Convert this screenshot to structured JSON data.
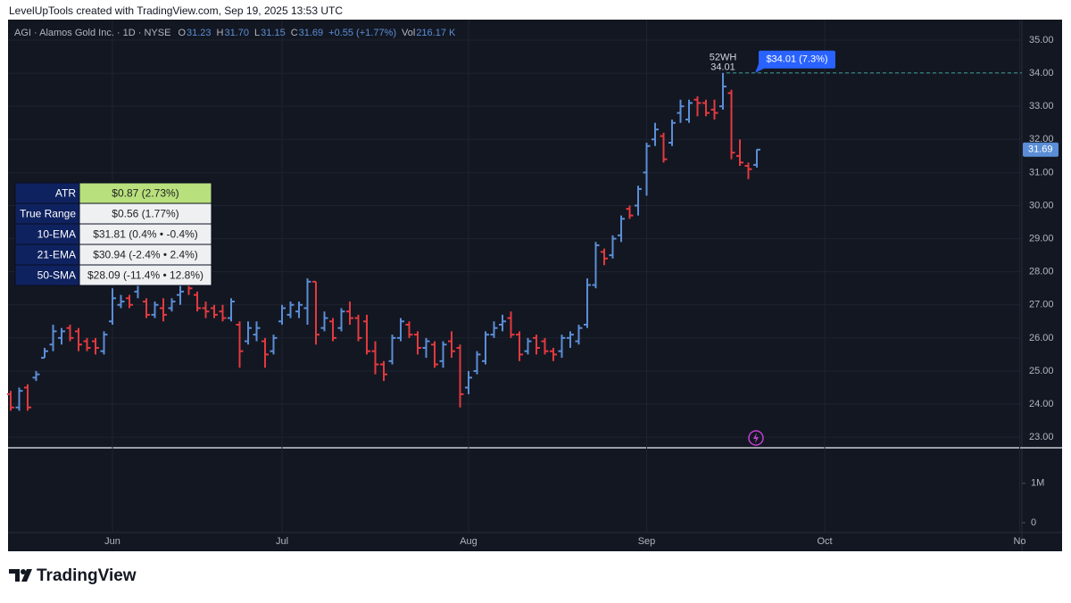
{
  "header": {
    "credit": "LevelUpTools created with TradingView.com, Sep 19, 2025 13:53 UTC"
  },
  "legend": {
    "symbol": "AGI · Alamos Gold Inc. · 1D · NYSE",
    "items": [
      {
        "key": "O",
        "value": "31.23"
      },
      {
        "key": "H",
        "value": "31.70"
      },
      {
        "key": "L",
        "value": "31.15"
      },
      {
        "key": "C",
        "value": "31.69"
      }
    ],
    "change": "+0.55 (+1.77%)",
    "volume": {
      "key": "Vol",
      "value": "216.17 K"
    }
  },
  "indicator_table": {
    "rows": [
      [
        "ATR",
        "$0.87 (2.73%)"
      ],
      [
        "True Range",
        "$0.56 (1.77%)"
      ],
      [
        "10-EMA",
        "$31.81 (0.4% • -0.4%)"
      ],
      [
        "21-EMA",
        "$30.94 (-2.4% • 2.4%)"
      ],
      [
        "50-SMA",
        "$28.09 (-11.4% • 12.8%)"
      ]
    ]
  },
  "chart_data": {
    "type": "ohlc",
    "categories": [
      null,
      null,
      null,
      null,
      null,
      null,
      null,
      null,
      null,
      null,
      null,
      null,
      "Jun",
      null,
      null,
      null,
      null,
      null,
      null,
      null,
      null,
      null,
      null,
      null,
      null,
      null,
      null,
      null,
      null,
      null,
      null,
      null,
      "Jul",
      null,
      null,
      null,
      null,
      null,
      null,
      null,
      null,
      null,
      null,
      null,
      null,
      null,
      null,
      null,
      null,
      null,
      null,
      null,
      null,
      null,
      "Aug",
      null,
      null,
      null,
      null,
      null,
      null,
      null,
      null,
      null,
      null,
      null,
      null,
      null,
      null,
      null,
      null,
      null,
      null,
      null,
      null,
      "Sep",
      null,
      null,
      null,
      null,
      null,
      null,
      null,
      null,
      null,
      null,
      null,
      null,
      null,
      null,
      null,
      null,
      null,
      null,
      null,
      null,
      "Oct",
      null,
      null,
      null,
      null,
      null,
      null,
      null,
      null,
      null,
      null,
      null,
      null,
      null,
      null,
      null,
      null,
      null,
      null,
      null,
      null,
      null,
      null,
      "No"
    ],
    "open": [
      24.3,
      23.9,
      24.5,
      24.8,
      25.4,
      25.8,
      26.0,
      26.3,
      26.2,
      25.9,
      25.9,
      25.6,
      26.5,
      27.0,
      27.2,
      27.4,
      27.1,
      26.7,
      26.9,
      26.9,
      27.3,
      27.6,
      27.3,
      26.9,
      26.9,
      26.8,
      26.6,
      26.4,
      25.9,
      26.1,
      25.9,
      25.6,
      26.5,
      26.7,
      26.8,
      26.9,
      27.7,
      26.3,
      26.5,
      26.3,
      26.8,
      26.6,
      26.5,
      25.6,
      25.2,
      25.3,
      26.0,
      26.4,
      26.1,
      25.7,
      25.8,
      25.3,
      25.9,
      25.7,
      24.5,
      25.0,
      25.3,
      26.1,
      26.4,
      26.6,
      26.1,
      25.6,
      26.0,
      25.9,
      25.6,
      25.6,
      26.0,
      25.9,
      26.4,
      27.6,
      28.6,
      28.5,
      29.1,
      29.9,
      30.0,
      31.0,
      32.0,
      32.1,
      31.9,
      32.8,
      32.6,
      33.2,
      33.1,
      32.9,
      33.0,
      33.4,
      31.5,
      31.2,
      31.23,
      null,
      null,
      null,
      null,
      null,
      null,
      null,
      null,
      null,
      null,
      null,
      null,
      null,
      null,
      null,
      null,
      null,
      null,
      null,
      null,
      null,
      null,
      null,
      null,
      null,
      null,
      null,
      null,
      null,
      null,
      null
    ],
    "high": [
      24.4,
      24.5,
      24.6,
      25.0,
      25.7,
      26.4,
      26.3,
      26.4,
      26.3,
      26.0,
      26.0,
      26.2,
      27.5,
      27.3,
      27.3,
      28.0,
      27.2,
      27.1,
      27.2,
      27.2,
      27.6,
      27.9,
      27.4,
      27.1,
      27.0,
      27.0,
      27.2,
      26.5,
      26.5,
      26.5,
      26.0,
      26.1,
      27.0,
      27.1,
      27.1,
      27.8,
      27.7,
      26.8,
      26.6,
      26.9,
      27.1,
      26.7,
      26.7,
      25.9,
      25.3,
      26.1,
      26.6,
      26.5,
      26.2,
      26.0,
      25.9,
      25.9,
      26.2,
      25.8,
      25.0,
      25.6,
      26.2,
      26.5,
      26.7,
      26.8,
      26.2,
      26.0,
      26.1,
      26.0,
      25.7,
      26.1,
      26.2,
      26.4,
      27.8,
      28.9,
      28.7,
      29.1,
      29.7,
      30.0,
      30.6,
      31.9,
      32.5,
      32.2,
      32.6,
      33.2,
      33.2,
      33.3,
      33.2,
      33.2,
      34.01,
      33.5,
      32.0,
      31.3,
      31.7,
      null,
      null,
      null,
      null,
      null,
      null,
      null,
      null,
      null,
      null,
      null,
      null,
      null,
      null,
      null,
      null,
      null,
      null,
      null,
      null,
      null,
      null,
      null,
      null,
      null,
      null,
      null,
      null,
      null,
      null,
      null
    ],
    "low": [
      23.8,
      23.8,
      23.8,
      24.7,
      25.4,
      25.6,
      25.8,
      25.9,
      25.6,
      25.6,
      25.5,
      25.5,
      26.4,
      26.9,
      26.9,
      27.2,
      26.6,
      26.6,
      26.5,
      26.8,
      27.0,
      27.3,
      26.8,
      26.6,
      26.6,
      26.5,
      26.5,
      25.1,
      25.8,
      25.9,
      25.1,
      25.5,
      26.4,
      26.6,
      26.6,
      26.4,
      25.8,
      26.2,
      25.9,
      26.2,
      26.4,
      25.9,
      25.5,
      24.9,
      24.7,
      25.2,
      25.9,
      26.0,
      25.5,
      25.4,
      25.1,
      25.1,
      25.4,
      23.9,
      24.3,
      24.9,
      25.2,
      26.0,
      26.2,
      26.0,
      25.3,
      25.5,
      25.5,
      25.5,
      25.3,
      25.4,
      25.7,
      25.8,
      26.3,
      27.5,
      28.2,
      28.4,
      28.9,
      29.6,
      29.7,
      30.3,
      31.8,
      31.3,
      31.8,
      32.5,
      32.5,
      32.7,
      32.7,
      32.6,
      32.9,
      31.4,
      31.2,
      30.8,
      31.15,
      null,
      null,
      null,
      null,
      null,
      null,
      null,
      null,
      null,
      null,
      null,
      null,
      null,
      null,
      null,
      null,
      null,
      null,
      null,
      null,
      null,
      null,
      null,
      null,
      null,
      null,
      null,
      null,
      null,
      null,
      null
    ],
    "close": [
      23.9,
      24.4,
      23.9,
      24.9,
      25.6,
      26.2,
      26.2,
      26.0,
      25.8,
      25.7,
      25.7,
      26.1,
      27.2,
      27.1,
      27.0,
      27.9,
      26.7,
      27.0,
      26.7,
      27.1,
      27.4,
      27.5,
      26.9,
      26.8,
      26.7,
      26.6,
      27.1,
      25.6,
      26.3,
      26.3,
      25.5,
      26.0,
      26.9,
      27.0,
      27.0,
      27.7,
      26.1,
      26.6,
      26.0,
      26.8,
      26.6,
      26.0,
      25.6,
      25.2,
      24.9,
      26.0,
      26.5,
      26.1,
      25.7,
      25.9,
      25.2,
      25.8,
      25.6,
      24.3,
      24.8,
      25.5,
      26.1,
      26.3,
      26.5,
      26.1,
      25.5,
      25.9,
      25.7,
      25.6,
      25.5,
      26.0,
      26.1,
      26.3,
      27.6,
      28.8,
      28.4,
      29.0,
      29.6,
      29.7,
      30.5,
      31.8,
      32.3,
      31.4,
      32.5,
      33.0,
      33.1,
      33.1,
      32.8,
      32.8,
      33.6,
      31.6,
      31.3,
      31.1,
      31.69,
      null,
      null,
      null,
      null,
      null,
      null,
      null,
      null,
      null,
      null,
      null,
      null,
      null,
      null,
      null,
      null,
      null,
      null,
      null,
      null,
      null,
      null,
      null,
      null,
      null,
      null,
      null,
      null,
      null,
      null,
      null
    ],
    "up_color": "#5b8ed6",
    "down_color": "#e23a3f",
    "ylim": [
      22.68,
      35.62
    ],
    "yticks": [
      {
        "value": 23,
        "label": "23.00"
      },
      {
        "value": 24,
        "label": "24.00"
      },
      {
        "value": 25,
        "label": "25.00"
      },
      {
        "value": 26,
        "label": "26.00"
      },
      {
        "value": 27,
        "label": "27.00"
      },
      {
        "value": 28,
        "label": "28.00"
      },
      {
        "value": 29,
        "label": "29.00"
      },
      {
        "value": 30,
        "label": "30.00"
      },
      {
        "value": 31,
        "label": "31.00"
      },
      {
        "value": 32,
        "label": "32.00"
      },
      {
        "value": 33,
        "label": "33.00"
      },
      {
        "value": 34,
        "label": "34.00"
      },
      {
        "value": 35,
        "label": "35.00"
      }
    ],
    "volume_ylim": [
      -250000,
      1900000
    ],
    "volume_ticks": [
      0,
      {
        "value": 1000000,
        "label": "1M"
      }
    ],
    "grid": true,
    "annotations": {
      "high_tag": "52WH",
      "high_value": "34.01",
      "high_callout": "$34.01 (7.3%)",
      "last_price": "31.69"
    }
  },
  "footer": {
    "brand": "TradingView"
  }
}
